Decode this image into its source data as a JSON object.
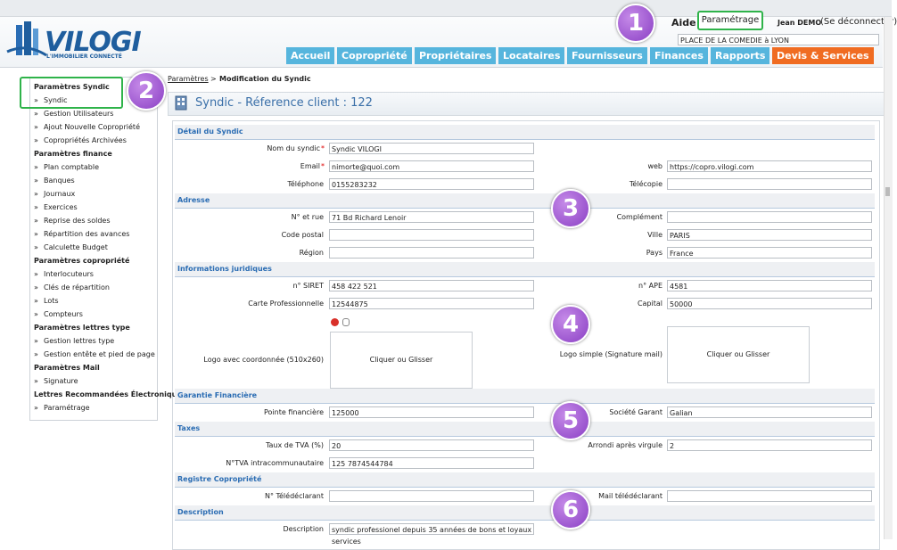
{
  "header": {
    "logo": "VILOGI",
    "tagline": "L'IMMOBILIER CONNECTÉ",
    "help": "Aide",
    "settings": "Paramétrage",
    "user": "Jean DEMO",
    "logout": "(Se déconnecter)",
    "site": "PLACE DE LA COMEDIE à LYON"
  },
  "nav": {
    "tabs": [
      "Accueil",
      "Copropriété",
      "Propriétaires",
      "Locataires",
      "Fournisseurs",
      "Finances",
      "Rapports",
      "Devis & Services"
    ],
    "active": "Devis & Services"
  },
  "callouts": [
    1,
    2,
    3,
    4,
    5,
    6
  ],
  "sidebar": {
    "bullet": "»",
    "sections": [
      {
        "title": "Paramètres Syndic",
        "items": [
          "Syndic",
          "Gestion Utilisateurs",
          "Ajout Nouvelle Copropriété",
          "Copropriétés Archivées"
        ]
      },
      {
        "title": "Paramètres finance",
        "items": [
          "Plan comptable",
          "Banques",
          "Journaux",
          "Exercices",
          "Reprise des soldes",
          "Répartition des avances",
          "Calculette Budget"
        ]
      },
      {
        "title": "Paramètres copropriété",
        "items": [
          "Interlocuteurs",
          "Clés de répartition",
          "Lots",
          "Compteurs"
        ]
      },
      {
        "title": "Paramètres lettres type",
        "items": [
          "Gestion lettres type",
          "Gestion entête et pied de page"
        ]
      },
      {
        "title": "Paramètres Mail",
        "items": [
          "Signature"
        ]
      },
      {
        "title": "Lettres Recommandées Électroniques",
        "items": [
          "Paramétrage"
        ]
      }
    ]
  },
  "breadcrumb": {
    "parent": "Paramètres",
    "separator": ">",
    "current": "Modification du Syndic"
  },
  "page_title": "Syndic - Réference client : 122",
  "form": {
    "required": "*",
    "sections": [
      {
        "title": "Détail du Syndic",
        "rows": [
          {
            "left": {
              "label": "Nom du syndic",
              "required": true,
              "value": "Syndic VILOGI"
            }
          },
          {
            "left": {
              "label": "Email",
              "required": true,
              "value": "nimorte@quoi.com"
            },
            "right": {
              "label": "web",
              "value": "https://copro.vilogi.com"
            }
          },
          {
            "left": {
              "label": "Téléphone",
              "value": "0155283232"
            },
            "right": {
              "label": "Télécopie"
            }
          }
        ]
      },
      {
        "title": "Adresse",
        "rows": [
          {
            "left": {
              "label": "N° et rue",
              "value": "71 Bd Richard Lenoir"
            },
            "right": {
              "label": "Complément"
            }
          },
          {
            "left": {
              "label": "Code postal"
            },
            "right": {
              "label": "Ville",
              "value": "PARIS"
            }
          },
          {
            "left": {
              "label": "Région"
            },
            "right": {
              "label": "Pays",
              "value": "France"
            }
          }
        ]
      },
      {
        "title": "Informations juridiques",
        "rows": [
          {
            "left": {
              "label": "n° SIRET",
              "value": "458 422 521"
            },
            "right": {
              "label": "n° APE",
              "value": "4581"
            }
          },
          {
            "left": {
              "label": "Carte Professionnelle",
              "value": "12544875"
            },
            "right": {
              "label": "Capital",
              "value": "50000"
            }
          },
          {
            "left": {
              "label": "Logo avec coordonnée (510x260)",
              "upload": "Cliquer ou Glisser"
            },
            "right": {
              "label": "Logo simple (Signature mail)",
              "upload": "Cliquer ou Glisser"
            }
          }
        ]
      },
      {
        "title": "Garantie Financière",
        "rows": [
          {
            "left": {
              "label": "Pointe financière",
              "value": "125000"
            },
            "right": {
              "label": "Société Garant",
              "value": "Galian"
            }
          }
        ]
      },
      {
        "title": "Taxes",
        "rows": [
          {
            "left": {
              "label": "Taux de TVA (%)",
              "value": "20"
            },
            "right": {
              "label": "Arrondi après virgule",
              "value": "2"
            }
          },
          {
            "left": {
              "label": "N°TVA intracommunautaire",
              "value": "125 7874544784"
            }
          }
        ]
      },
      {
        "title": "Registre Copropriété",
        "rows": [
          {
            "left": {
              "label": "N° Télédéclarant"
            },
            "right": {
              "label": "Mail télédéclarant"
            }
          }
        ]
      },
      {
        "title": "Description",
        "rows": [
          {
            "left": {
              "label": "Description",
              "value": "syndic professionel depuis 35 années de bons et loyaux services"
            }
          }
        ]
      }
    ]
  }
}
